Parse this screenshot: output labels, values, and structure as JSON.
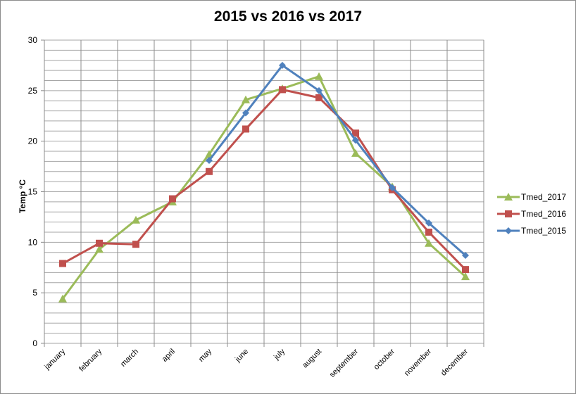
{
  "chart_data": {
    "type": "line",
    "title": "2015 vs 2016 vs 2017",
    "xlabel": "",
    "ylabel": "Temp °C",
    "ylim": [
      0,
      30
    ],
    "yticks": [
      0,
      5,
      10,
      15,
      20,
      25,
      30
    ],
    "grid": true,
    "legend_position": "right",
    "categories": [
      "january",
      "february",
      "march",
      "april",
      "may",
      "june",
      "july",
      "august",
      "september",
      "october",
      "november",
      "december"
    ],
    "series": [
      {
        "name": "Tmed_2017",
        "color": "#9bbb59",
        "marker": "triangle",
        "values": [
          4.4,
          9.3,
          12.2,
          14.0,
          18.7,
          24.1,
          25.2,
          26.4,
          18.8,
          15.5,
          9.9,
          6.6
        ]
      },
      {
        "name": "Tmed_2016",
        "color": "#c0504d",
        "marker": "square",
        "values": [
          7.9,
          9.9,
          9.8,
          14.3,
          17.0,
          21.2,
          25.1,
          24.3,
          20.8,
          15.2,
          11.0,
          7.3
        ]
      },
      {
        "name": "Tmed_2015",
        "color": "#4f81bd",
        "marker": "diamond",
        "values": [
          null,
          null,
          null,
          null,
          18.1,
          22.8,
          27.5,
          25.0,
          20.1,
          15.4,
          11.9,
          8.7
        ]
      }
    ]
  }
}
